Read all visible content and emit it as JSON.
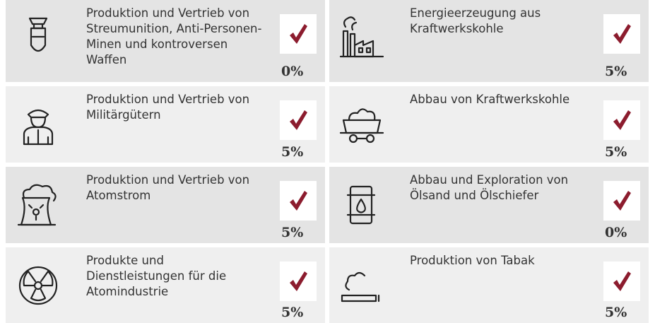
{
  "items": [
    {
      "label": "Produktion und Vertrieb von Streumunition, Anti-Personen-Minen und kontroversen Waffen",
      "percent": "0%"
    },
    {
      "label": "Energieerzeugung aus Kraftwerkskohle",
      "percent": "5%"
    },
    {
      "label": "Produktion und Vertrieb von Militärgütern",
      "percent": "5%"
    },
    {
      "label": "Abbau von Kraftwerkskohle",
      "percent": "5%"
    },
    {
      "label": "Produktion und Vertrieb von Atomstrom",
      "percent": "5%"
    },
    {
      "label": "Abbau und Exploration von Ölsand und Ölschiefer",
      "percent": "0%"
    },
    {
      "label": "Produkte und Dienstleistungen für die Atomindustrie",
      "percent": "5%"
    },
    {
      "label": "Produktion von Tabak",
      "percent": "5%"
    }
  ]
}
